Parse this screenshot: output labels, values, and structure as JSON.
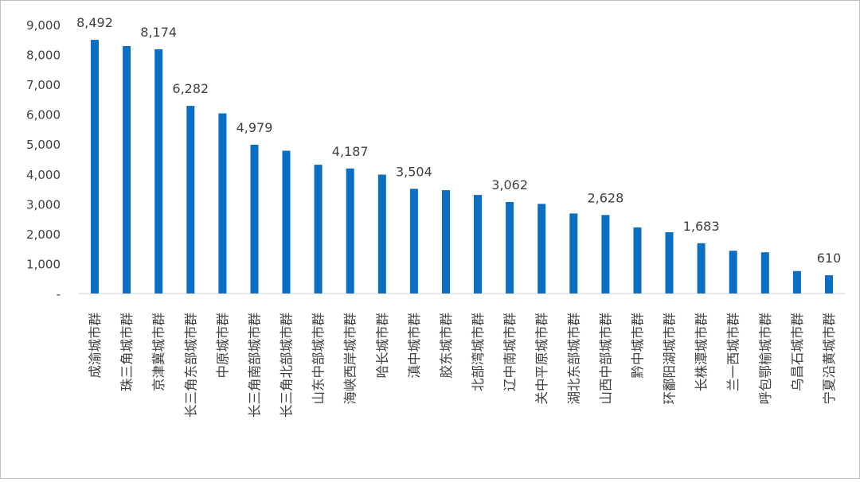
{
  "chart_data": {
    "type": "bar",
    "categories": [
      "成渝城市群",
      "珠三角城市群",
      "京津冀城市群",
      "长三角东部城市群",
      "中原城市群",
      "长三角南部城市群",
      "长三角北部城市群",
      "山东中部城市群",
      "海峡西岸城市群",
      "哈长城市群",
      "滇中城市群",
      "胶东城市群",
      "北部湾城市群",
      "辽中南城市群",
      "关中平原城市群",
      "湖北东部城市群",
      "山西中部城市群",
      "黔中城市群",
      "环鄱阳湖城市群",
      "长株潭城市群",
      "兰一西城市群",
      "呼包鄂榆城市群",
      "乌昌石城市群",
      "宁夏沿黄城市群"
    ],
    "values": [
      8492,
      8280,
      8174,
      6282,
      6030,
      4979,
      4780,
      4310,
      4187,
      3980,
      3504,
      3460,
      3300,
      3062,
      3000,
      2680,
      2628,
      2210,
      2050,
      1683,
      1430,
      1380,
      750,
      610
    ],
    "data_labels": [
      "8,492",
      "",
      "8,174",
      "6,282",
      "",
      "4,979",
      "",
      "",
      "4,187",
      "",
      "3,504",
      "",
      "",
      "3,062",
      "",
      "",
      "2,628",
      "",
      "",
      "1,683",
      "",
      "",
      "",
      "610"
    ],
    "y_ticks": [
      "-",
      "1,000",
      "2,000",
      "3,000",
      "4,000",
      "5,000",
      "6,000",
      "7,000",
      "8,000",
      "9,000"
    ],
    "ylim": [
      0,
      9000
    ],
    "title": "",
    "xlabel": "",
    "ylabel": "",
    "grid": false,
    "legend": "none",
    "bar_color": "#0a6fc2",
    "axis_color": "#d9d9d9",
    "text_color": "#404040"
  }
}
